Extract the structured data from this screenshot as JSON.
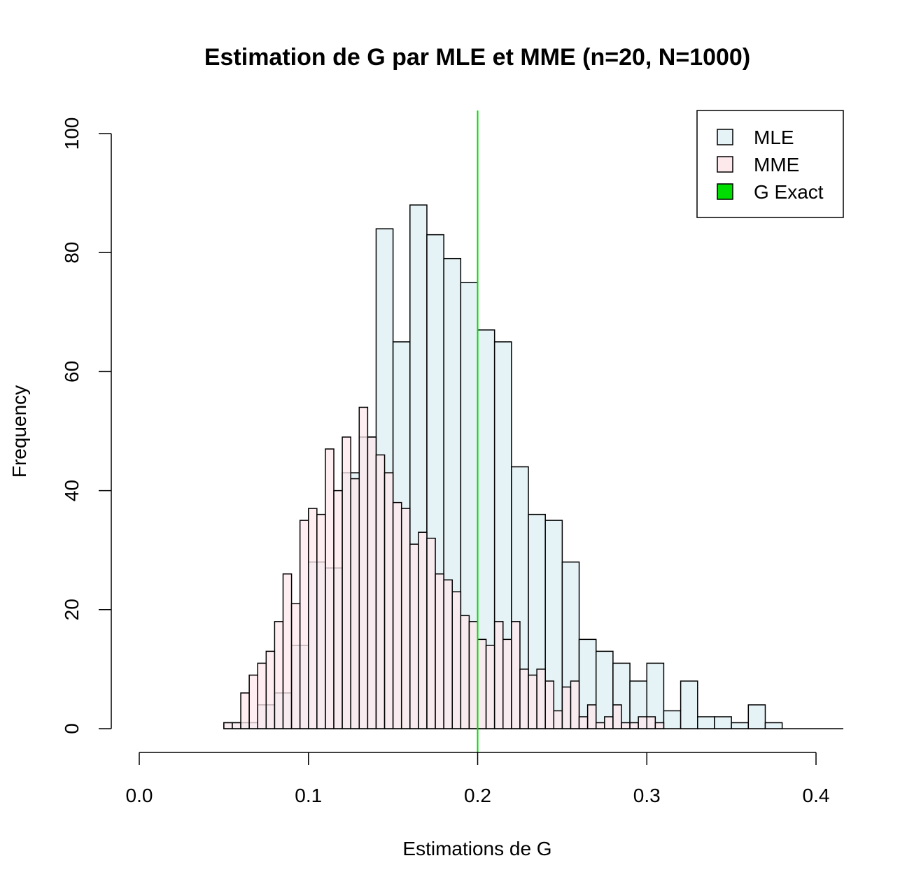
{
  "chart_data": {
    "type": "bar",
    "title": "Estimation de G par MLE et MME (n=20, N=1000)",
    "xlabel": "Estimations de G",
    "ylabel": "Frequency",
    "xlim": [
      0.0,
      0.42
    ],
    "ylim": [
      0,
      100
    ],
    "x_ticks": [
      "0.0",
      "0.1",
      "0.2",
      "0.3",
      "0.4"
    ],
    "x_tick_values": [
      0.0,
      0.1,
      0.2,
      0.3,
      0.4
    ],
    "y_ticks": [
      "0",
      "20",
      "40",
      "60",
      "80",
      "100"
    ],
    "y_tick_values": [
      0,
      20,
      40,
      60,
      80,
      100
    ],
    "grid": false,
    "legend_position": "top-right",
    "reference_line": {
      "name": "G Exact",
      "x": 0.2,
      "color": "#00dd00"
    },
    "series": [
      {
        "name": "MLE",
        "color": "#e6f3f6",
        "bin_width": 0.01,
        "bin_starts": [
          0.05,
          0.06,
          0.07,
          0.08,
          0.09,
          0.1,
          0.11,
          0.12,
          0.13,
          0.14,
          0.15,
          0.16,
          0.17,
          0.18,
          0.19,
          0.2,
          0.21,
          0.22,
          0.23,
          0.24,
          0.25,
          0.26,
          0.27,
          0.28,
          0.29,
          0.3,
          0.31,
          0.32,
          0.33,
          0.34,
          0.35,
          0.36,
          0.37
        ],
        "values": [
          1,
          1,
          4,
          6,
          14,
          28,
          27,
          43,
          49,
          84,
          65,
          88,
          83,
          79,
          75,
          67,
          65,
          44,
          36,
          35,
          28,
          15,
          13,
          11,
          8,
          11,
          3,
          8,
          2,
          2,
          1,
          4,
          1
        ]
      },
      {
        "name": "MME",
        "color": "#fde8ec",
        "bin_width": 0.005,
        "bin_starts": [
          0.05,
          0.055,
          0.06,
          0.065,
          0.07,
          0.075,
          0.08,
          0.085,
          0.09,
          0.095,
          0.1,
          0.105,
          0.11,
          0.115,
          0.12,
          0.125,
          0.13,
          0.135,
          0.14,
          0.145,
          0.15,
          0.155,
          0.16,
          0.165,
          0.17,
          0.175,
          0.18,
          0.185,
          0.19,
          0.195,
          0.2,
          0.205,
          0.21,
          0.215,
          0.22,
          0.225,
          0.23,
          0.235,
          0.24,
          0.245,
          0.25,
          0.255,
          0.26,
          0.265,
          0.27,
          0.275,
          0.28,
          0.285,
          0.29,
          0.295,
          0.3,
          0.305
        ],
        "values": [
          1,
          1,
          6,
          9,
          11,
          13,
          18,
          26,
          21,
          35,
          37,
          36,
          47,
          40,
          49,
          42,
          54,
          49,
          46,
          43,
          38,
          37,
          31,
          33,
          32,
          26,
          25,
          23,
          19,
          18,
          15,
          14,
          18,
          15,
          18,
          10,
          9,
          10,
          8,
          3,
          7,
          8,
          2,
          4,
          1,
          2,
          4,
          1,
          1,
          2,
          2,
          1
        ]
      }
    ]
  }
}
